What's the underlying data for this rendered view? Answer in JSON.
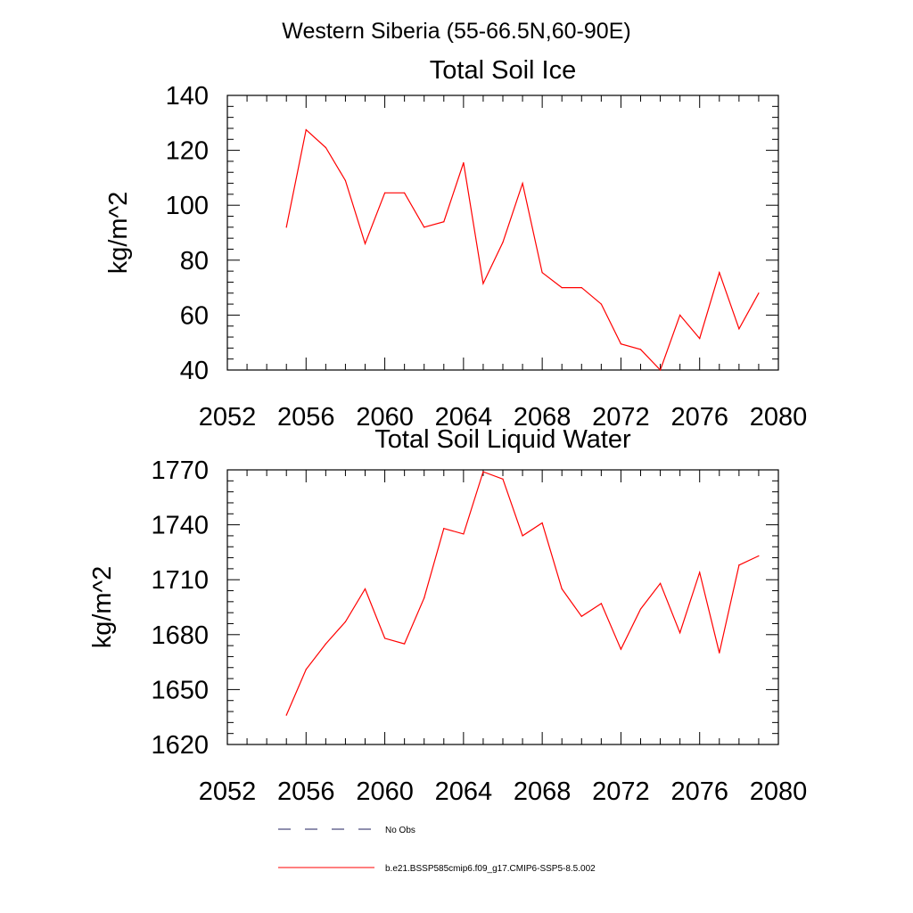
{
  "suptitle": "Western Siberia (55-66.5N,60-90E)",
  "colors": {
    "model_line": "#ff0000",
    "obs_line": "#1f1f5c",
    "axis": "#000000"
  },
  "chart_data": [
    {
      "type": "line",
      "title": "Total Soil Ice",
      "xlabel": "",
      "ylabel": "kg/m^2",
      "xlim": [
        2052,
        2080
      ],
      "ylim": [
        40,
        140
      ],
      "xticks": [
        2052,
        2056,
        2060,
        2064,
        2068,
        2072,
        2076,
        2080
      ],
      "yticks": [
        40,
        60,
        80,
        100,
        120,
        140
      ],
      "grid": false,
      "series": [
        {
          "name": "b.e21.BSSP585cmip6.f09_g17.CMIP6-SSP5-8.5.002",
          "x": [
            2055,
            2056,
            2057,
            2058,
            2059,
            2060,
            2061,
            2062,
            2063,
            2064,
            2065,
            2066,
            2067,
            2068,
            2069,
            2070,
            2071,
            2072,
            2073,
            2074,
            2075,
            2076,
            2077,
            2078,
            2079
          ],
          "y": [
            92,
            127.5,
            121,
            109,
            86,
            104.5,
            104.5,
            92,
            94,
            115.5,
            71.5,
            86.5,
            108,
            75.5,
            70,
            70,
            64,
            49.5,
            47.5,
            40,
            60,
            51.5,
            75.5,
            55,
            68
          ]
        }
      ]
    },
    {
      "type": "line",
      "title": "Total Soil Liquid Water",
      "xlabel": "",
      "ylabel": "kg/m^2",
      "xlim": [
        2052,
        2080
      ],
      "ylim": [
        1620,
        1770
      ],
      "xticks": [
        2052,
        2056,
        2060,
        2064,
        2068,
        2072,
        2076,
        2080
      ],
      "yticks": [
        1620,
        1650,
        1680,
        1710,
        1740,
        1770
      ],
      "grid": false,
      "series": [
        {
          "name": "b.e21.BSSP585cmip6.f09_g17.CMIP6-SSP5-8.5.002",
          "x": [
            2055,
            2056,
            2057,
            2058,
            2059,
            2060,
            2061,
            2062,
            2063,
            2064,
            2065,
            2066,
            2067,
            2068,
            2069,
            2070,
            2071,
            2072,
            2073,
            2074,
            2075,
            2076,
            2077,
            2078,
            2079
          ],
          "y": [
            1636,
            1661,
            1675,
            1687,
            1705,
            1678,
            1675,
            1700,
            1738,
            1735,
            1769,
            1765,
            1734,
            1741,
            1705,
            1690,
            1697,
            1672,
            1694,
            1708,
            1681,
            1714,
            1670,
            1718,
            1723
          ]
        }
      ]
    }
  ],
  "legend": {
    "placement": "bottom",
    "entries": [
      {
        "label": "No Obs",
        "style": "dashed",
        "color": "#1f1f5c"
      },
      {
        "label": "b.e21.BSSP585cmip6.f09_g17.CMIP6-SSP5-8.5.002",
        "style": "solid",
        "color": "#ff0000"
      }
    ]
  }
}
